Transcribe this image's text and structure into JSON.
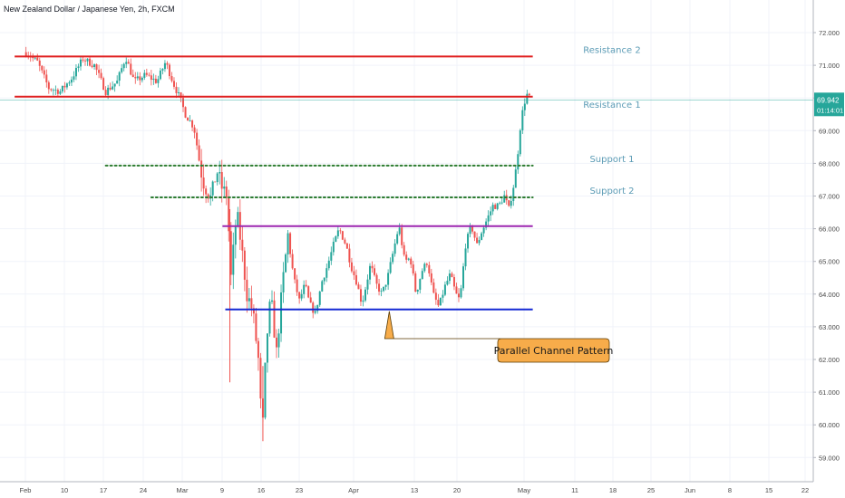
{
  "header": {
    "symbol_title": "New Zealand Dollar / Japanese Yen, 2h, FXCM"
  },
  "price_tag": {
    "value": "69.942",
    "countdown": "01:14:01",
    "color": "#26a69a"
  },
  "colors": {
    "up": "#26a69a",
    "down": "#ef5350",
    "resistance": "#e02020",
    "support": "#2e7d32",
    "channel_top": "#9c27b0",
    "channel_bottom": "#1428d4",
    "callout": "#f7ac4a"
  },
  "chart_data": {
    "type": "candlestick",
    "title": "New Zealand Dollar / Japanese Yen, 2h, FXCM",
    "ylim": [
      58.6,
      72.6
    ],
    "y_ticks": [
      "59.000",
      "60.000",
      "61.000",
      "62.000",
      "63.000",
      "64.000",
      "65.000",
      "66.000",
      "67.000",
      "68.000",
      "69.000",
      "70.000",
      "71.000",
      "72.000"
    ],
    "x_ticks": [
      "Feb",
      "10",
      "17",
      "24",
      "Mar",
      "9",
      "16",
      "23",
      "Apr",
      "13",
      "20",
      "May",
      "11",
      "18",
      "25",
      "Jun",
      "8",
      "15",
      "22"
    ],
    "last_price": 69.942,
    "path": [
      [
        0,
        71.4
      ],
      [
        2,
        71.1
      ],
      [
        4,
        70.3
      ],
      [
        6,
        70.2
      ],
      [
        8,
        70.6
      ],
      [
        10,
        71.2
      ],
      [
        12,
        71.0
      ],
      [
        14,
        70.2
      ],
      [
        16,
        70.5
      ],
      [
        17.5,
        71.25
      ],
      [
        19,
        70.5
      ],
      [
        21,
        70.7
      ],
      [
        23,
        70.5
      ],
      [
        24.5,
        71.1
      ],
      [
        26,
        70.4
      ],
      [
        27,
        70.0
      ],
      [
        28,
        69.5
      ],
      [
        29.5,
        69.1
      ],
      [
        31,
        67.5
      ],
      [
        32.5,
        66.9
      ],
      [
        33.5,
        67.8
      ],
      [
        34.5,
        67.2
      ],
      [
        35.3,
        67.0
      ],
      [
        36,
        64.5
      ],
      [
        37,
        66.5
      ],
      [
        37.8,
        65.5
      ],
      [
        38.8,
        64.0
      ],
      [
        39.8,
        63.5
      ],
      [
        40.8,
        62.0
      ],
      [
        41.5,
        59.6
      ],
      [
        42.2,
        62.5
      ],
      [
        43,
        63.9
      ],
      [
        44,
        62.2
      ],
      [
        45,
        64.2
      ],
      [
        46,
        65.8
      ],
      [
        47,
        64.5
      ],
      [
        48,
        63.8
      ],
      [
        49,
        64.3
      ],
      [
        49.8,
        63.7
      ],
      [
        50.8,
        63.4
      ],
      [
        52,
        64.4
      ],
      [
        53,
        64.9
      ],
      [
        54,
        65.5
      ],
      [
        55,
        66.0
      ],
      [
        56.2,
        65.5
      ],
      [
        57.2,
        64.8
      ],
      [
        58,
        64.4
      ],
      [
        59,
        63.7
      ],
      [
        60.5,
        64.9
      ],
      [
        61.5,
        64.3
      ],
      [
        62.5,
        64.0
      ],
      [
        63.5,
        64.5
      ],
      [
        64.5,
        65.3
      ],
      [
        65.5,
        66.1
      ],
      [
        66.5,
        65.0
      ],
      [
        67.5,
        65.1
      ],
      [
        68.5,
        64.0
      ],
      [
        69.5,
        64.7
      ],
      [
        70.5,
        65.0
      ],
      [
        71.5,
        64.0
      ],
      [
        72.5,
        63.6
      ],
      [
        73.5,
        64.2
      ],
      [
        74.5,
        64.6
      ],
      [
        75.5,
        64.0
      ],
      [
        76.2,
        63.8
      ],
      [
        77.2,
        65.5
      ],
      [
        78.2,
        66.1
      ],
      [
        79.2,
        65.5
      ],
      [
        80,
        65.9
      ],
      [
        81,
        66.3
      ],
      [
        82,
        66.7
      ],
      [
        83,
        66.7
      ],
      [
        84,
        67.0
      ],
      [
        84.8,
        66.6
      ],
      [
        85.6,
        67.3
      ],
      [
        86.2,
        68.0
      ],
      [
        86.8,
        69.1
      ],
      [
        87.4,
        69.8
      ],
      [
        88,
        70.1
      ],
      [
        88.8,
        69.9
      ]
    ],
    "annotations": [
      {
        "text": "Resistance 2",
        "value": 71.27,
        "from_day": -2,
        "to_day": 89,
        "style": "solid",
        "color": "#e02020"
      },
      {
        "text": "Resistance 1",
        "value": 70.04,
        "from_day": -2,
        "to_day": 89,
        "style": "solid",
        "color": "#e02020"
      },
      {
        "text": "Support  1",
        "value": 67.93,
        "from_day": 14,
        "to_day": 89,
        "style": "dotted",
        "color": "#2e7d32"
      },
      {
        "text": "Support  2",
        "value": 66.96,
        "from_day": 22,
        "to_day": 89,
        "style": "dotted",
        "color": "#2e7d32"
      },
      {
        "text": "",
        "value": 66.08,
        "from_day": 34.5,
        "to_day": 89,
        "style": "solid",
        "color": "#9c27b0"
      },
      {
        "text": "",
        "value": 63.53,
        "from_day": 35,
        "to_day": 89,
        "style": "solid",
        "color": "#1428d4"
      }
    ],
    "callout": {
      "text": "Parallel Channel Pattern",
      "anchor_day": 63.8,
      "anchor_value": 63.53
    }
  }
}
